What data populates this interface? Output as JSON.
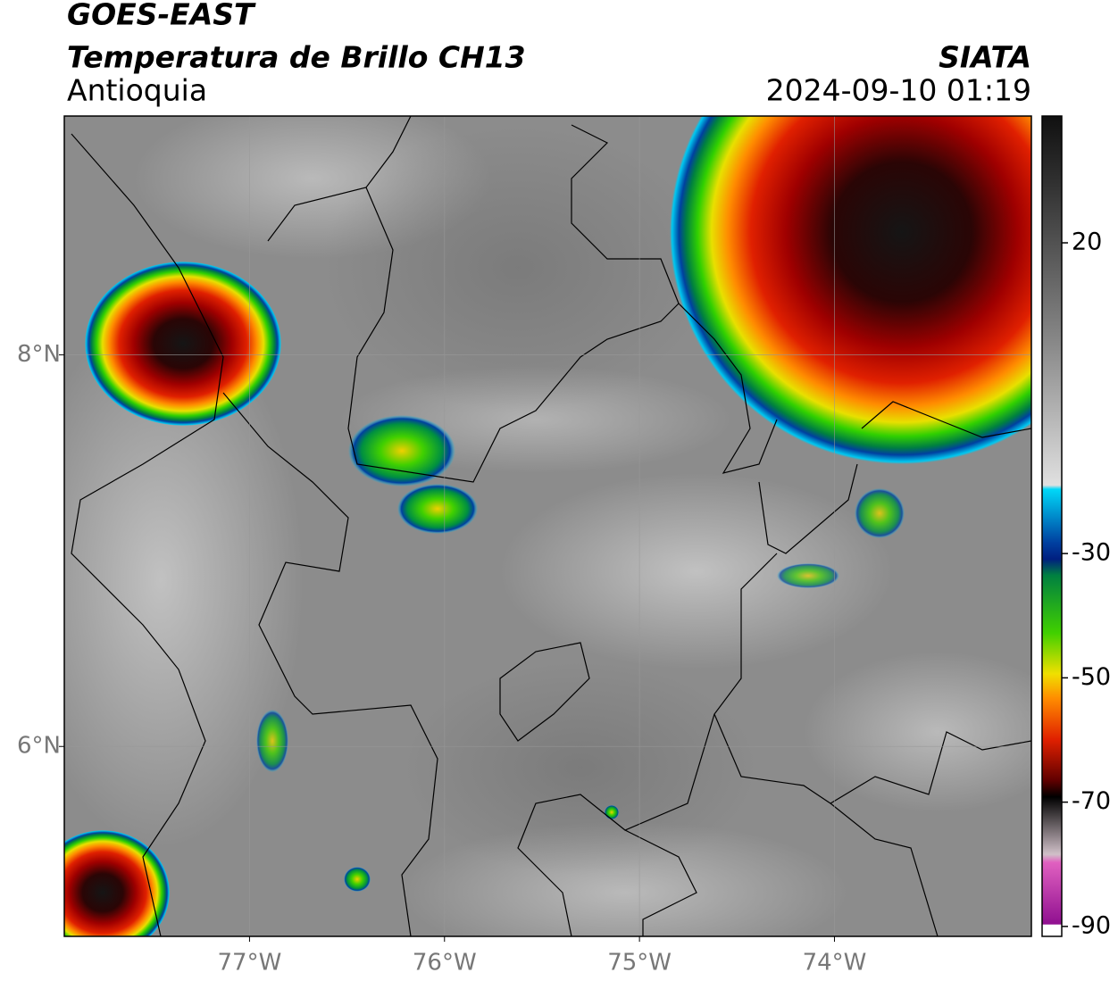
{
  "header": {
    "title": "GOES-EAST",
    "subtitle": "Temperatura de Brillo CH13",
    "region": "Antioquia",
    "source": "SIATA",
    "datetime": "2024-09-10 01:19"
  },
  "map": {
    "lonlim": [
      -77.95,
      -72.99
    ],
    "latlim": [
      5.03,
      9.22
    ],
    "lon_ticks": [
      {
        "value": -77,
        "label": "77°W"
      },
      {
        "value": -76,
        "label": "76°W"
      },
      {
        "value": -75,
        "label": "75°W"
      },
      {
        "value": -74,
        "label": "74°W"
      }
    ],
    "lat_ticks": [
      {
        "value": 8,
        "label": "8°N"
      },
      {
        "value": 6,
        "label": "6°N"
      }
    ],
    "grid": true
  },
  "colorbar": {
    "lim": [
      -91.6,
      40.4
    ],
    "ticks": [
      20,
      -30,
      -50,
      -70,
      -90
    ]
  }
}
